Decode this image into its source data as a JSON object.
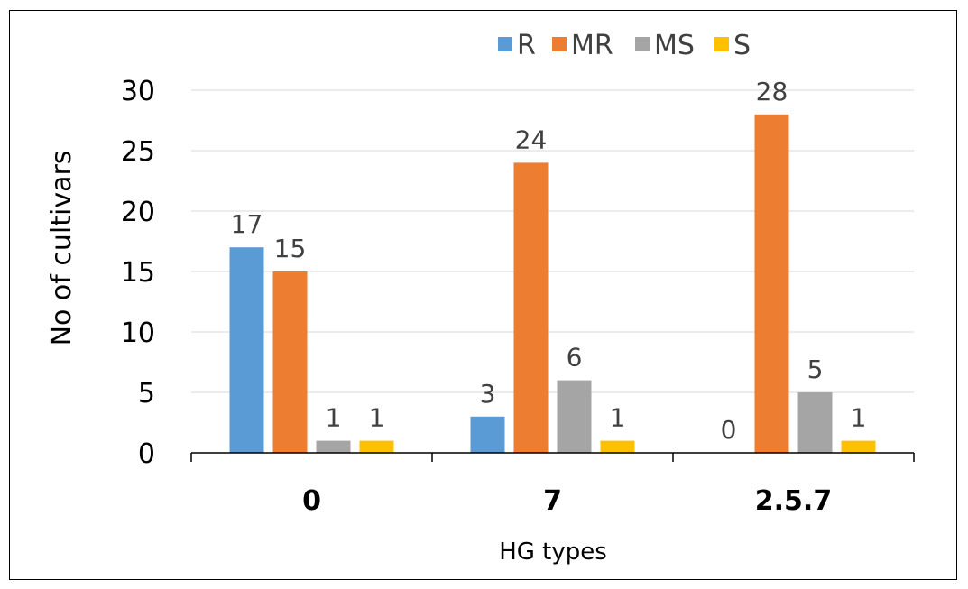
{
  "chart_data": {
    "type": "bar",
    "categories": [
      "0",
      "7",
      "2.5.7"
    ],
    "series": [
      {
        "name": "R",
        "color": "#5B9BD5",
        "values": [
          17,
          3,
          0
        ]
      },
      {
        "name": "MR",
        "color": "#ED7D31",
        "values": [
          15,
          24,
          28
        ]
      },
      {
        "name": "MS",
        "color": "#A5A5A5",
        "values": [
          1,
          6,
          5
        ]
      },
      {
        "name": "S",
        "color": "#FFC000",
        "values": [
          1,
          1,
          1
        ]
      }
    ],
    "xlabel": "HG types",
    "ylabel": "No of cultivars",
    "ylim": [
      0,
      30
    ],
    "yticks": [
      0,
      5,
      10,
      15,
      20,
      25,
      30
    ],
    "grid": true,
    "legend_position": "top"
  }
}
